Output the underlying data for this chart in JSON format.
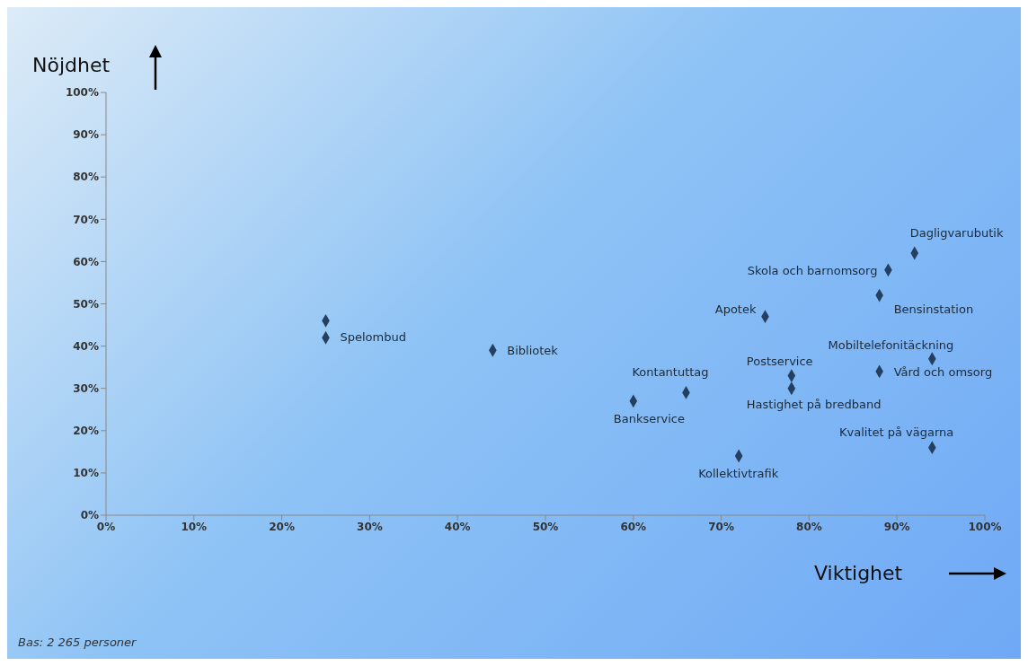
{
  "chart_data": {
    "type": "scatter",
    "xlabel": "Viktighet",
    "ylabel": "Nöjdhet",
    "x": [
      25,
      25,
      44,
      60,
      66,
      72,
      75,
      78,
      78,
      89,
      92,
      88,
      94,
      88,
      94
    ],
    "values": [
      46,
      42,
      39,
      27,
      29,
      14,
      47,
      33,
      30,
      58,
      62,
      52,
      37,
      34,
      16
    ],
    "color": "#243f60",
    "marker": "diamond",
    "legend": false,
    "grid": false,
    "xlim": [
      0,
      100
    ],
    "ylim": [
      0,
      100
    ],
    "xticks": [
      {
        "value": 0,
        "label": "0%"
      },
      {
        "value": 10,
        "label": "10%"
      },
      {
        "value": 20,
        "label": "20%"
      },
      {
        "value": 30,
        "label": "30%"
      },
      {
        "value": 40,
        "label": "40%"
      },
      {
        "value": 50,
        "label": "50%"
      },
      {
        "value": 60,
        "label": "60%"
      },
      {
        "value": 70,
        "label": "70%"
      },
      {
        "value": 80,
        "label": "80%"
      },
      {
        "value": 90,
        "label": "90%"
      },
      {
        "value": 100,
        "label": "100%"
      }
    ],
    "yticks": [
      {
        "value": 0,
        "label": "0%"
      },
      {
        "value": 10,
        "label": "10%"
      },
      {
        "value": 20,
        "label": "20%"
      },
      {
        "value": 30,
        "label": "30%"
      },
      {
        "value": 40,
        "label": "40%"
      },
      {
        "value": 50,
        "label": "50%"
      },
      {
        "value": 60,
        "label": "60%"
      },
      {
        "value": 70,
        "label": "70%"
      },
      {
        "value": 80,
        "label": "80%"
      },
      {
        "value": 90,
        "label": "90%"
      },
      {
        "value": 100,
        "label": "100%"
      }
    ],
    "annotations": [
      {
        "text": "Spelombud",
        "x": 25,
        "y": 42
      },
      {
        "text": "Bibliotek",
        "x": 44,
        "y": 39
      },
      {
        "text": "Bankservice",
        "x": 60,
        "y": 27
      },
      {
        "text": "Kontantuttag",
        "x": 66,
        "y": 29
      },
      {
        "text": "Kollektivtrafik",
        "x": 72,
        "y": 14
      },
      {
        "text": "Apotek",
        "x": 75,
        "y": 47
      },
      {
        "text": "Postservice",
        "x": 78,
        "y": 33
      },
      {
        "text": "Hastighet på bredband",
        "x": 78,
        "y": 30
      },
      {
        "text": "Skola och barnomsorg",
        "x": 89,
        "y": 58
      },
      {
        "text": "Dagligvarubutik",
        "x": 92,
        "y": 62
      },
      {
        "text": "Bensinstation",
        "x": 88,
        "y": 52
      },
      {
        "text": "Mobiltelefonitäckning",
        "x": 94,
        "y": 37
      },
      {
        "text": "Vård och omsorg",
        "x": 88,
        "y": 34
      },
      {
        "text": "Kvalitet på vägarna",
        "x": 94,
        "y": 16
      },
      "Bas: 2 265 personer"
    ]
  }
}
